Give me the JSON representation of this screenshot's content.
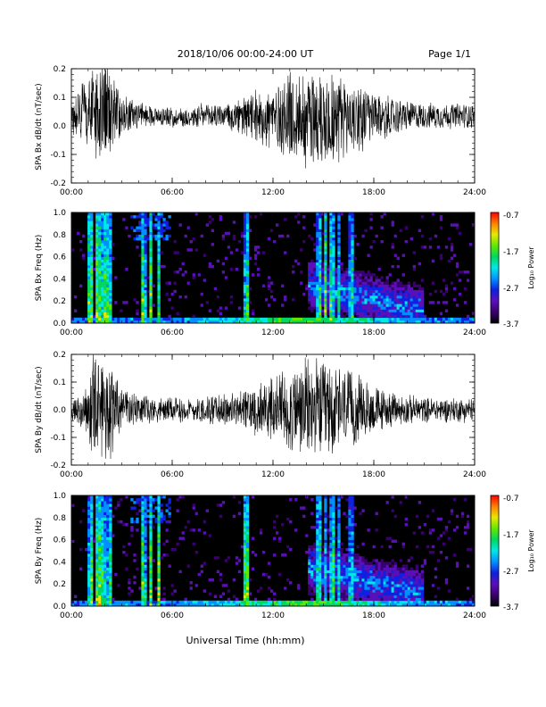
{
  "header": {
    "title": "2018/10/06  00:00-24:00 UT",
    "page": "Page 1/1"
  },
  "xlabel": "Universal Time (hh:mm)",
  "colorbar": {
    "ticks": [
      "-0.7",
      "-1.7",
      "-2.7",
      "-3.7"
    ],
    "label": "Log₁₀ Power",
    "colors": [
      "#000000",
      "#3a0070",
      "#5a10b8",
      "#1020e0",
      "#0090ff",
      "#00e8e8",
      "#00d860",
      "#60e800",
      "#e8e800",
      "#ff8000",
      "#ff0000"
    ]
  },
  "chart_data": [
    {
      "type": "line",
      "ylabel": "SPA Bx dB/dt (nT/sec)",
      "xticks": [
        "00:00",
        "06:00",
        "12:00",
        "18:00",
        "24:00"
      ],
      "yticks": [
        "0.2",
        "0.1",
        "0.0",
        "-0.1",
        "-0.2"
      ],
      "xlim": [
        0,
        24
      ],
      "ylim": [
        -0.2,
        0.2
      ],
      "envelope": {
        "hours": [
          0,
          0.5,
          1,
          1.3,
          1.7,
          2,
          2.3,
          3,
          4,
          5,
          6,
          7,
          8,
          9,
          10,
          11,
          12,
          13,
          14,
          15,
          16,
          17,
          18,
          19,
          20,
          21,
          22,
          23,
          24
        ],
        "offset": [
          0.03,
          0.05,
          0.06,
          0.06,
          0.04,
          0.05,
          0.05,
          0.04,
          0.04,
          0.035,
          0.03,
          0.03,
          0.035,
          0.035,
          0.03,
          0.03,
          0.03,
          0.03,
          0.03,
          0.03,
          0.03,
          0.03,
          0.03,
          0.03,
          0.035,
          0.035,
          0.035,
          0.035,
          0.035
        ],
        "amplitude": [
          0.06,
          0.1,
          0.14,
          0.2,
          0.22,
          0.2,
          0.16,
          0.08,
          0.05,
          0.04,
          0.04,
          0.04,
          0.05,
          0.05,
          0.07,
          0.1,
          0.14,
          0.18,
          0.2,
          0.2,
          0.18,
          0.14,
          0.1,
          0.08,
          0.06,
          0.05,
          0.05,
          0.05,
          0.05
        ]
      }
    },
    {
      "type": "heatmap",
      "ylabel": "SPA Bx Freq (Hz)",
      "xticks": [
        "00:00",
        "06:00",
        "12:00",
        "18:00",
        "24:00"
      ],
      "yticks": [
        "1.0",
        "0.8",
        "0.6",
        "0.4",
        "0.2",
        "0.0"
      ],
      "xlim": [
        0,
        24
      ],
      "ylim": [
        0,
        1
      ],
      "zlim": [
        -3.7,
        -0.7
      ]
    },
    {
      "type": "line",
      "ylabel": "SPA By dB/dt (nT/sec)",
      "xticks": [
        "00:00",
        "06:00",
        "12:00",
        "18:00",
        "24:00"
      ],
      "yticks": [
        "0.2",
        "0.1",
        "0.0",
        "-0.1",
        "-0.2"
      ],
      "xlim": [
        0,
        24
      ],
      "ylim": [
        -0.2,
        0.2
      ],
      "envelope": {
        "hours": [
          0,
          0.5,
          1,
          1.3,
          1.7,
          2,
          2.3,
          3,
          4,
          5,
          6,
          7,
          8,
          9,
          10,
          11,
          12,
          13,
          14,
          15,
          16,
          17,
          18,
          19,
          20,
          21,
          22,
          23,
          24
        ],
        "offset": [
          0,
          0,
          0,
          0,
          0,
          0,
          0,
          0,
          0,
          0,
          0,
          0,
          0,
          0,
          0,
          0,
          0,
          0,
          0,
          0,
          0,
          0,
          0,
          0,
          0,
          0,
          0,
          0,
          0
        ],
        "amplitude": [
          0.05,
          0.06,
          0.12,
          0.22,
          0.22,
          0.2,
          0.2,
          0.08,
          0.06,
          0.05,
          0.05,
          0.05,
          0.06,
          0.06,
          0.08,
          0.1,
          0.14,
          0.18,
          0.2,
          0.2,
          0.18,
          0.14,
          0.1,
          0.07,
          0.06,
          0.05,
          0.05,
          0.05,
          0.05
        ]
      }
    },
    {
      "type": "heatmap",
      "ylabel": "SPA By Freq (Hz)",
      "xticks": [
        "00:00",
        "06:00",
        "12:00",
        "18:00",
        "24:00"
      ],
      "yticks": [
        "1.0",
        "0.8",
        "0.6",
        "0.4",
        "0.2",
        "0.0"
      ],
      "xlim": [
        0,
        24
      ],
      "ylim": [
        0,
        1
      ],
      "zlim": [
        -3.7,
        -0.7
      ]
    }
  ]
}
